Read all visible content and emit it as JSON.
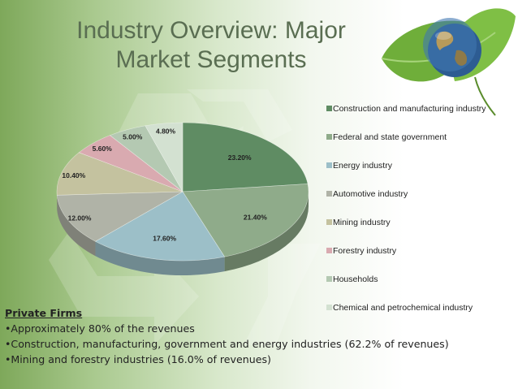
{
  "slide": {
    "title_line1": "Industry Overview: Major",
    "title_line2": "Market Segments"
  },
  "chart_data": {
    "type": "pie",
    "title": "",
    "unit": "%",
    "slices": [
      {
        "label": "Construction and manufacturing industry",
        "value": 23.2,
        "display": "23.20%",
        "color": "#5f8c63"
      },
      {
        "label": "Federal and state government",
        "value": 21.4,
        "display": "21.40%",
        "color": "#8fab8a"
      },
      {
        "label": "Energy industry",
        "value": 17.6,
        "display": "17.60%",
        "color": "#9cbfc8"
      },
      {
        "label": "Automotive industry",
        "value": 12.0,
        "display": "12.00%",
        "color": "#b0b3a7"
      },
      {
        "label": "Mining industry",
        "value": 10.4,
        "display": "10.40%",
        "color": "#c4c29f"
      },
      {
        "label": "Forestry industry",
        "value": 5.6,
        "display": "5.60%",
        "color": "#d9aab0"
      },
      {
        "label": "Households",
        "value": 5.0,
        "display": "5.00%",
        "color": "#b4c9b2"
      },
      {
        "label": "Chemical and petrochemical industry",
        "value": 4.8,
        "display": "4.80%",
        "color": "#d3e1d1"
      }
    ],
    "legend_position": "right"
  },
  "legend": {
    "items": [
      "Construction and manufacturing industry",
      "Federal and state government",
      "Energy industry",
      "Automotive industry",
      "Mining industry",
      "Forestry industry",
      "Households",
      "Chemical and petrochemical industry"
    ]
  },
  "text": {
    "heading": "Private Firms",
    "bullets": [
      "•Approximately 80% of the revenues",
      "•Construction, manufacturing, government and energy industries (62.2% of revenues)",
      "•Mining and forestry industries (16.0% of revenues)"
    ]
  },
  "icons": [
    "recycle-symbol",
    "leaf-globe-image"
  ]
}
